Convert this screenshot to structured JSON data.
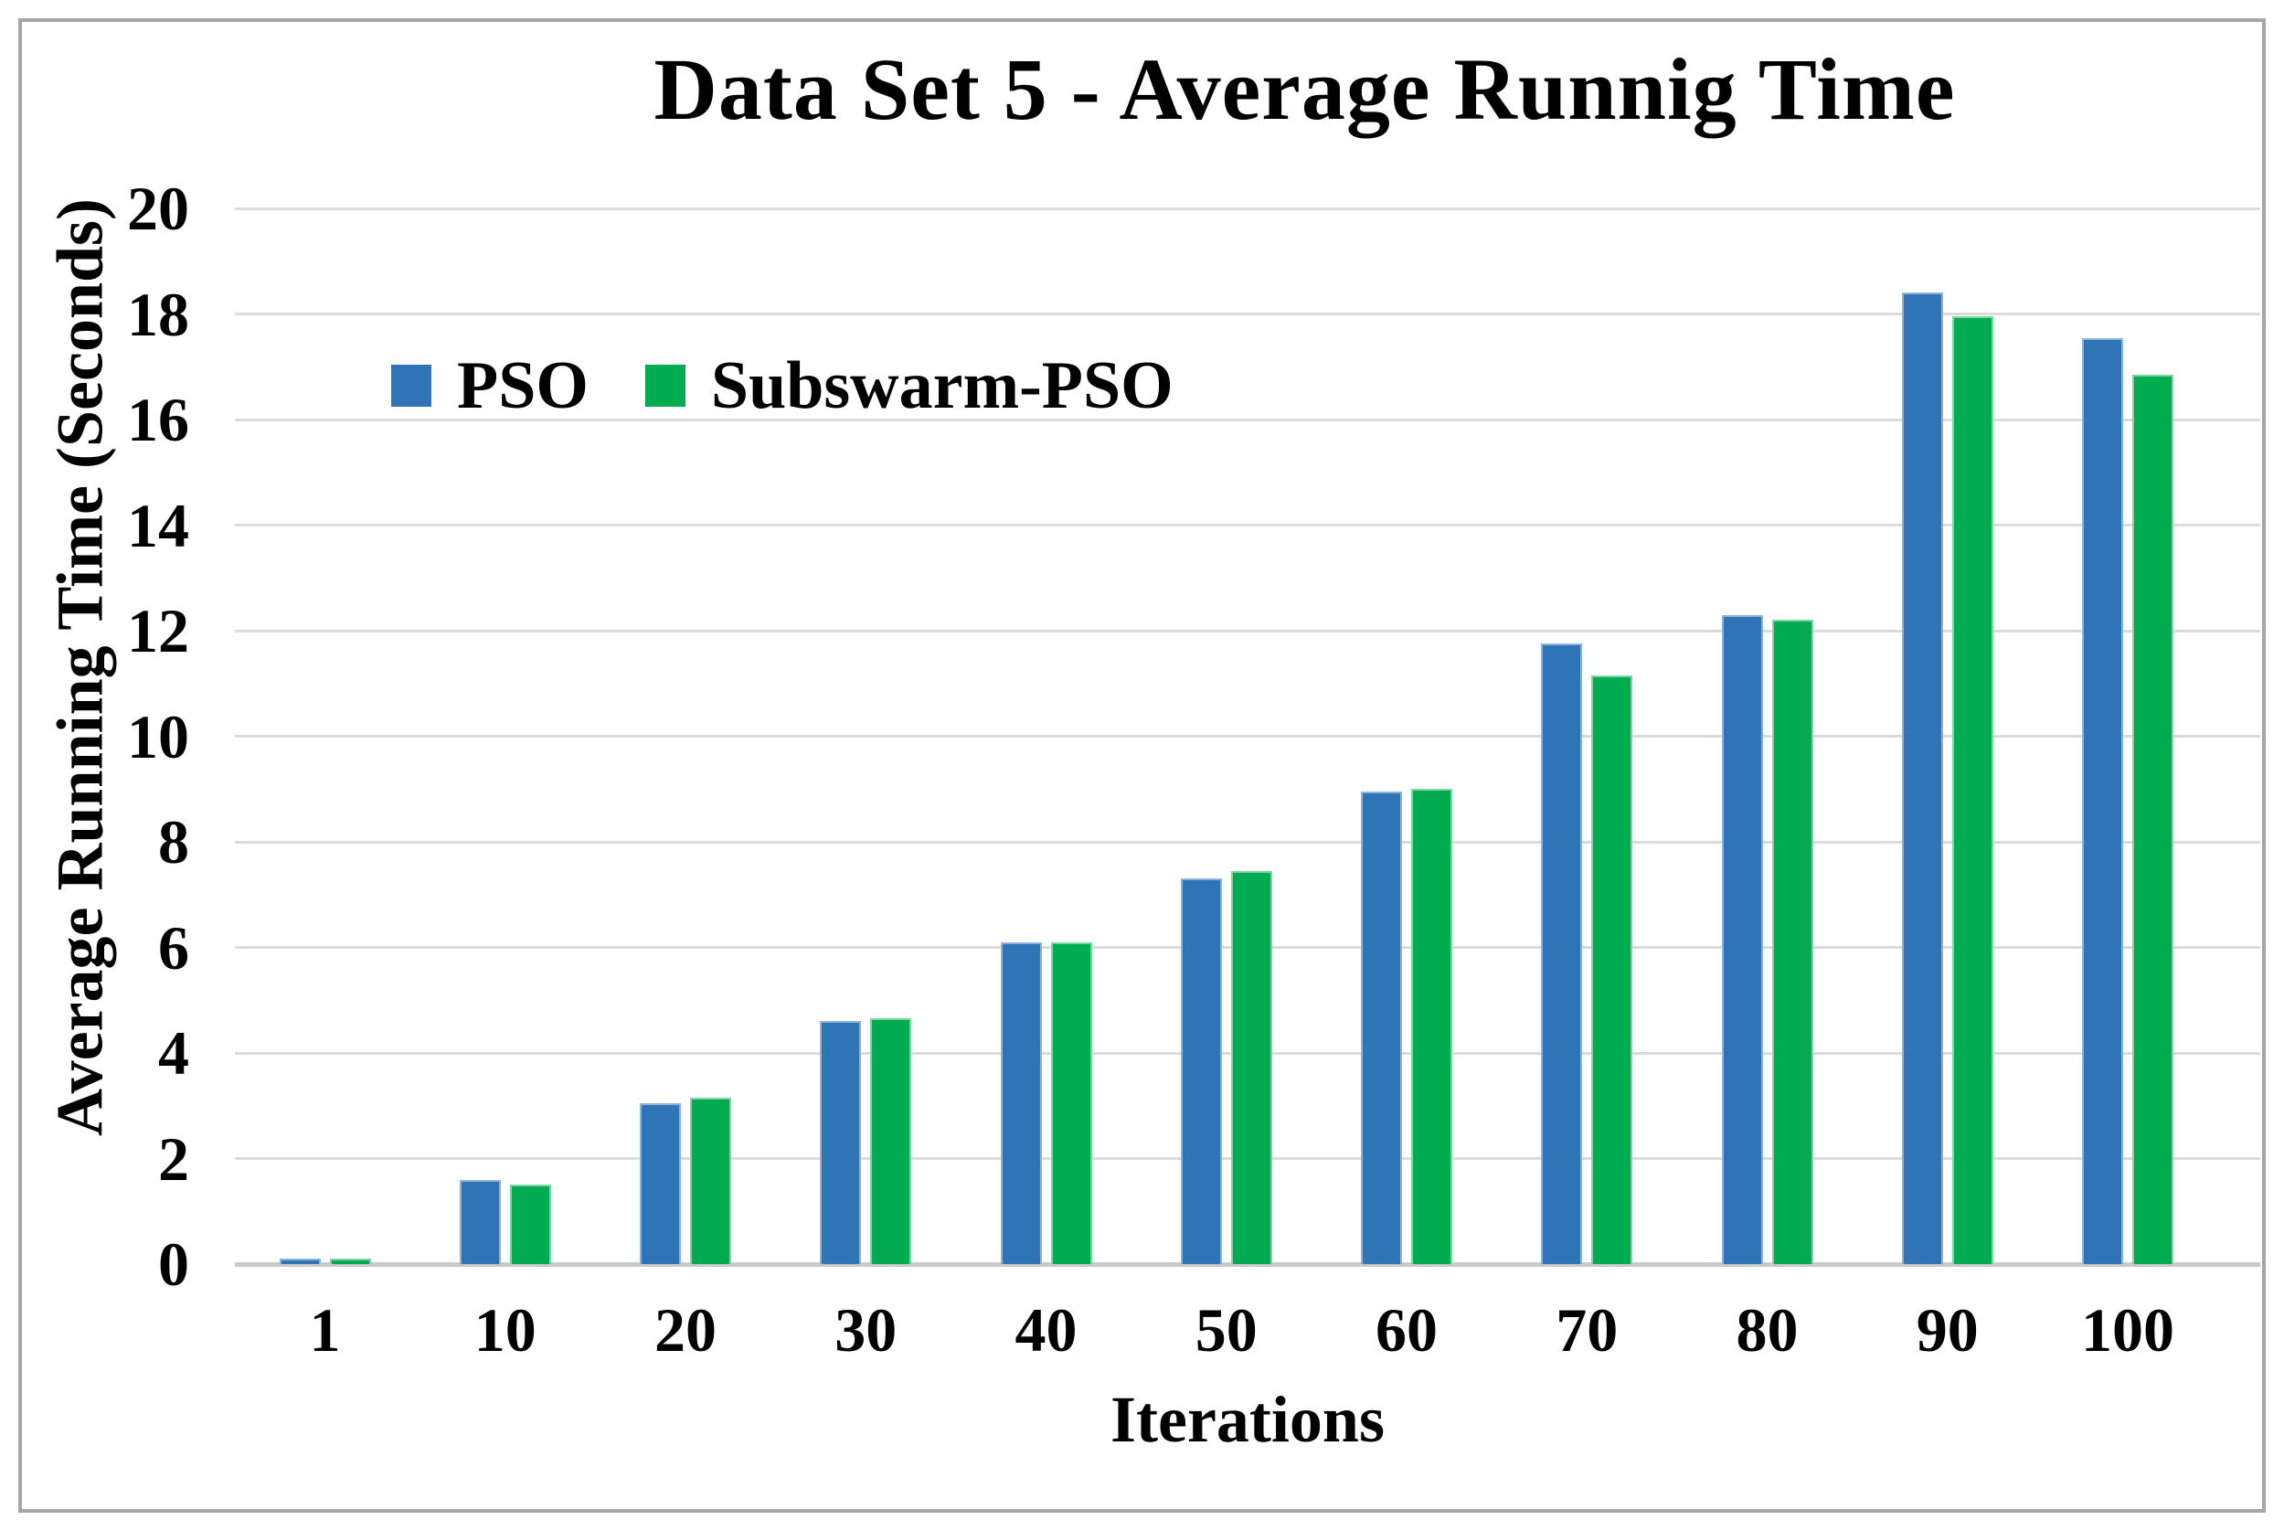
{
  "title": "Data Set 5 - Average Runnig Time",
  "colors": {
    "pso_blue": "#2E74B6",
    "pso_blue_edge": "#8FB4DC",
    "subswarm_green": "#00AC4F",
    "subswarm_green_edge": "#7BD6A4",
    "gridline": "#DBDBDB",
    "axis_line": "#C9C9C9",
    "frame_border": "#A6A6A6"
  },
  "chart_data": {
    "type": "bar",
    "title": "Data Set 5 - Average Runnig Time",
    "xlabel": "Iterations",
    "ylabel": "Average Running Time (Seconds)",
    "categories": [
      "1",
      "10",
      "20",
      "30",
      "40",
      "50",
      "60",
      "70",
      "80",
      "90",
      "100"
    ],
    "series": [
      {
        "name": "PSO",
        "color": "#2E74B6",
        "edge_color": "#8FB4DC",
        "values": [
          0.1,
          1.6,
          3.05,
          4.6,
          6.1,
          7.3,
          8.95,
          11.75,
          12.3,
          18.4,
          17.55
        ]
      },
      {
        "name": "Subswarm-PSO",
        "color": "#00AC4F",
        "edge_color": "#7BD6A4",
        "values": [
          0.1,
          1.5,
          3.15,
          4.65,
          6.1,
          7.45,
          9.0,
          11.15,
          12.2,
          17.95,
          16.85
        ]
      }
    ],
    "ylim": [
      0,
      20
    ],
    "ytick_step": 2,
    "grid": true,
    "legend_position": "top-left-inside"
  }
}
